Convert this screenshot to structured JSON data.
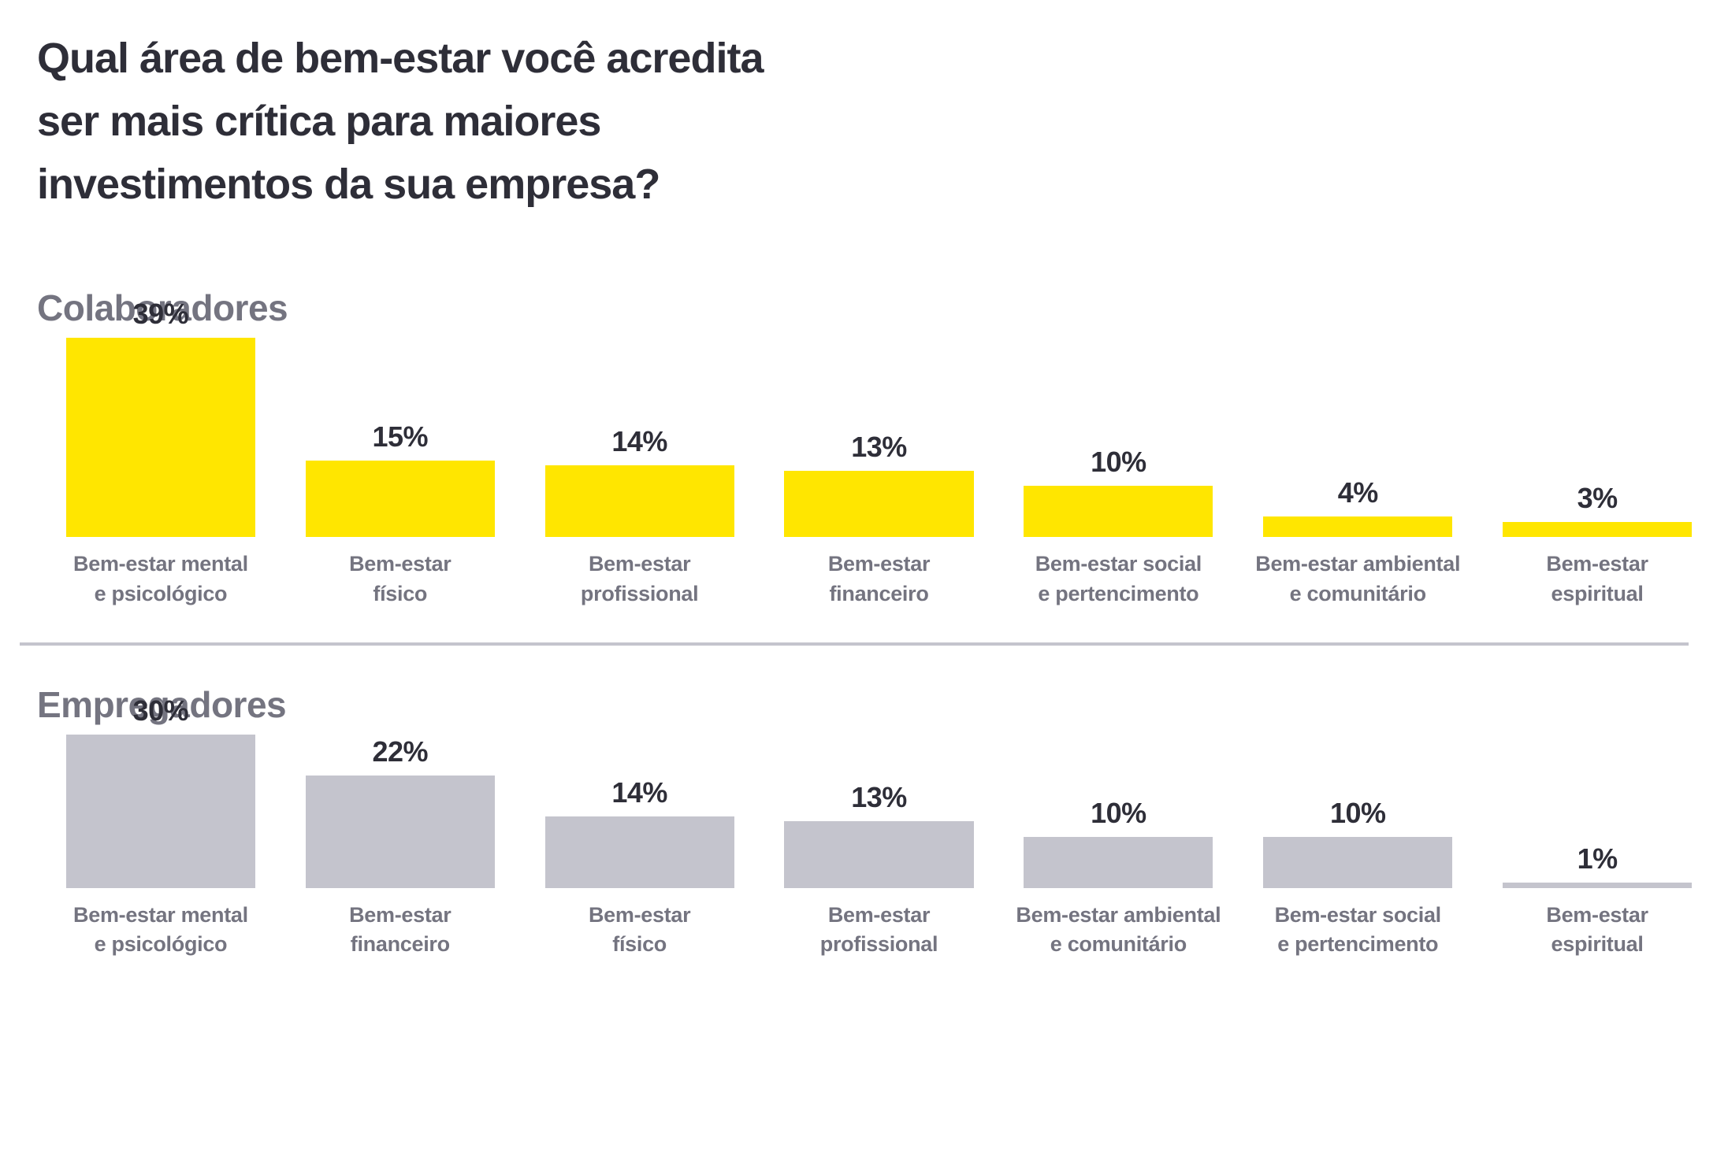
{
  "title": {
    "lines": [
      "Qual área de bem-estar você acredita",
      "ser mais crítica para maiores",
      "investimentos da sua empresa?"
    ],
    "full": "Qual área de bem-estar você acredita ser mais crítica para maiores investimentos da sua empresa?"
  },
  "colors": {
    "accent_yellow": "#FFE600",
    "bar_gray": "#C4C4CD",
    "text_dark": "#2E2E38",
    "text_gray": "#747480",
    "divider": "#C4C4CD"
  },
  "chart_data": [
    {
      "type": "bar",
      "section_label": "Colaboradores",
      "categories": [
        "Bem-estar mental e psicológico",
        "Bem-estar físico",
        "Bem-estar profissional",
        "Bem-estar financeiro",
        "Bem-estar social e pertencimento",
        "Bem-estar ambiental e comunitário",
        "Bem-estar espiritual"
      ],
      "categories_lines": [
        [
          "Bem-estar mental",
          "e psicológico"
        ],
        [
          "Bem-estar",
          "físico"
        ],
        [
          "Bem-estar",
          "profissional"
        ],
        [
          "Bem-estar",
          "financeiro"
        ],
        [
          "Bem-estar social",
          "e pertencimento"
        ],
        [
          "Bem-estar ambiental",
          "e comunitário"
        ],
        [
          "Bem-estar",
          "espiritual"
        ]
      ],
      "values": [
        39,
        15,
        14,
        13,
        10,
        4,
        3
      ],
      "value_labels": [
        "39%",
        "15%",
        "14%",
        "13%",
        "10%",
        "4%",
        "3%"
      ],
      "value_suffix": "%",
      "bar_color": "#FFE600",
      "ylim": [
        0,
        40
      ],
      "grid": false,
      "legend": false
    },
    {
      "type": "bar",
      "section_label": "Empregadores",
      "categories": [
        "Bem-estar mental e psicológico",
        "Bem-estar financeiro",
        "Bem-estar físico",
        "Bem-estar profissional",
        "Bem-estar ambiental e comunitário",
        "Bem-estar social e pertencimento",
        "Bem-estar espiritual"
      ],
      "categories_lines": [
        [
          "Bem-estar mental",
          "e psicológico"
        ],
        [
          "Bem-estar",
          "financeiro"
        ],
        [
          "Bem-estar",
          "físico"
        ],
        [
          "Bem-estar",
          "profissional"
        ],
        [
          "Bem-estar ambiental",
          "e comunitário"
        ],
        [
          "Bem-estar social",
          "e pertencimento"
        ],
        [
          "Bem-estar",
          "espiritual"
        ]
      ],
      "values": [
        30,
        22,
        14,
        13,
        10,
        10,
        1
      ],
      "value_labels": [
        "30%",
        "22%",
        "14%",
        "13%",
        "10%",
        "10%",
        "1%"
      ],
      "value_suffix": "%",
      "bar_color": "#C4C4CD",
      "ylim": [
        0,
        40
      ],
      "grid": false,
      "legend": false
    }
  ]
}
